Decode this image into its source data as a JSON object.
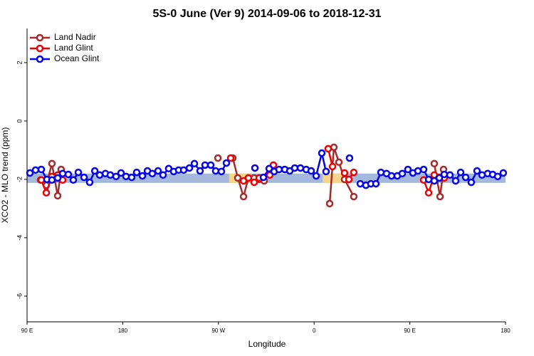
{
  "chart_data": {
    "type": "line",
    "title": "5S-0 June (Ver 9)   2014-09-06 to 2018-12-31",
    "x_label": "Longitude",
    "y_label": "XCO2 - MLO trend (ppm)",
    "xlim": [
      90,
      540
    ],
    "xticks": [
      {
        "value": 90,
        "label": "90 E"
      },
      {
        "value": 180,
        "label": "180"
      },
      {
        "value": 270,
        "label": "90 W"
      },
      {
        "value": 360,
        "label": "0"
      },
      {
        "value": 450,
        "label": "90 E"
      },
      {
        "value": 540,
        "label": "180"
      }
    ],
    "ylim": [
      -6.88,
      3.17
    ],
    "yticks": [
      -6,
      -4,
      -2,
      0,
      2
    ],
    "legend": "top-left",
    "band": [
      -2.12,
      -1.8
    ],
    "band_color": "#a3b8dc",
    "highlights": [
      [
        280,
        300
      ],
      [
        368,
        388
      ]
    ],
    "highlight_color": "#f5d58a",
    "series": [
      {
        "name": "Land Nadir",
        "color": "#a52a2a",
        "x": [
          102.7,
          108.1,
          113.4,
          118.8,
          122.1,
          null,
          269.5,
          null,
          283.5,
          288.2,
          293.6,
          298.2,
          303.6,
          308.3,
          313.0,
          null,
          374.6,
          378.6,
          383.3,
          388.6,
          397.3,
          null,
          473.0,
          478.4,
          481.7
        ],
        "values": [
          -2.02,
          -2.2,
          -1.46,
          -2.56,
          -1.66,
          null,
          -1.27,
          null,
          -1.27,
          -1.95,
          -2.59,
          -1.95,
          -1.95,
          -2.0,
          -2.05,
          null,
          -2.83,
          -0.9,
          -1.41,
          -2.0,
          -2.59,
          null,
          -1.46,
          -2.59,
          -1.66
        ]
      },
      {
        "name": "Land Glint",
        "color": "#ee0000",
        "x": [
          103.4,
          108.1,
          113.4,
          118.8,
          123.5,
          null,
          281.5,
          null,
          293.6,
          298.2,
          303.6,
          308.3,
          null,
          318.3,
          321.7,
          null,
          373.2,
          377.3,
          null,
          388.6,
          392.7,
          397.3,
          null,
          463.0,
          467.7,
          473.0,
          477.7,
          482.4
        ],
        "values": [
          -2.02,
          -2.46,
          -1.9,
          -1.85,
          -2.02,
          null,
          -1.27,
          null,
          -2.05,
          -1.95,
          -2.1,
          -1.95,
          null,
          -1.85,
          -1.51,
          null,
          -0.95,
          -1.56,
          null,
          -1.78,
          -2.0,
          -1.76,
          null,
          -2.02,
          -2.46,
          -1.85,
          -1.93,
          -1.95
        ]
      },
      {
        "name": "Ocean Glint",
        "color": "#0000ee",
        "x": [
          92.7,
          98.0,
          103.4,
          108.7,
          113.4,
          118.8,
          123.5,
          128.8,
          133.5,
          138.2,
          143.6,
          148.9,
          153.7,
          158.3,
          163.7,
          168.3,
          173.7,
          178.4,
          183.1,
          188.4,
          193.1,
          198.5,
          203.2,
          207.8,
          213.2,
          217.9,
          223.2,
          227.9,
          232.6,
          237.3,
          242.7,
          247.4,
          252.7,
          257.4,
          262.8,
          267.4,
          272.8,
          277.5,
          null,
          304.3,
          null,
          312.3,
          317.7,
          322.4,
          327.0,
          332.4,
          337.1,
          341.8,
          347.1,
          352.5,
          357.2,
          361.9,
          367.2,
          371.2,
          null,
          393.3,
          null,
          403.4,
          408.7,
          413.4,
          418.1,
          422.8,
          428.1,
          432.8,
          438.2,
          442.9,
          448.2,
          452.9,
          457.6,
          463.0,
          467.7,
          473.0,
          477.7,
          482.4,
          487.7,
          493.1,
          497.8,
          502.5,
          507.8,
          513.2,
          517.9,
          523.2,
          527.9,
          532.6,
          537.9
        ],
        "values": [
          -1.78,
          -1.68,
          -1.66,
          -2.0,
          -2.02,
          -1.95,
          -1.8,
          -1.83,
          -2.02,
          -1.76,
          -1.93,
          -2.1,
          -1.71,
          -1.85,
          -1.8,
          -1.85,
          -1.9,
          -1.78,
          -1.9,
          -1.93,
          -1.76,
          -1.88,
          -1.71,
          -1.8,
          -1.71,
          -1.85,
          -1.63,
          -1.73,
          -1.68,
          -1.68,
          -1.61,
          -1.46,
          -1.71,
          -1.51,
          -1.51,
          -1.71,
          -1.73,
          -1.44,
          null,
          -1.61,
          null,
          -1.93,
          -1.63,
          -1.73,
          -1.66,
          -1.66,
          -1.71,
          -1.61,
          -1.61,
          -1.66,
          -1.71,
          -1.88,
          -1.1,
          -1.73,
          null,
          -1.27,
          null,
          -2.15,
          -2.2,
          -2.15,
          -2.15,
          -1.76,
          -1.8,
          -1.88,
          -1.88,
          -1.8,
          -1.66,
          -1.78,
          -1.71,
          -1.66,
          -2.0,
          -2.05,
          -1.95,
          -1.83,
          -1.85,
          -2.05,
          -1.76,
          -1.93,
          -2.1,
          -1.71,
          -1.85,
          -1.8,
          -1.83,
          -1.9,
          -1.78
        ]
      }
    ]
  }
}
